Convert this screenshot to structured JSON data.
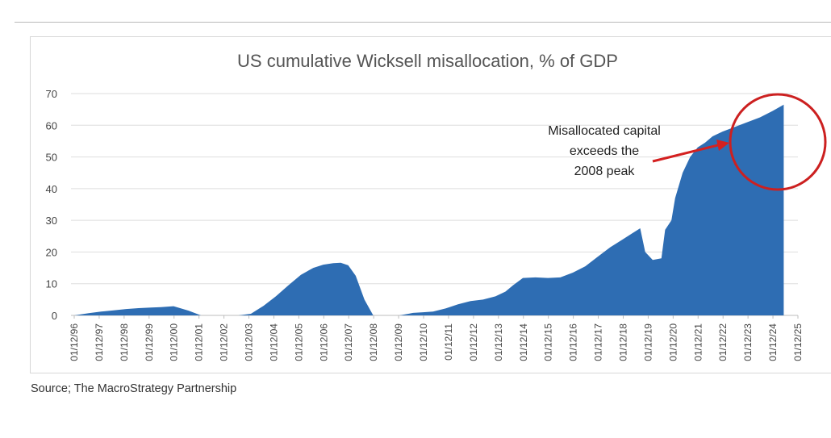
{
  "chart_data": {
    "type": "area",
    "title": "US cumulative Wicksell misallocation, % of GDP",
    "xlabel": "",
    "ylabel": "",
    "ylim": [
      0,
      70
    ],
    "yticks": [
      0,
      10,
      20,
      30,
      40,
      50,
      60,
      70
    ],
    "grid": true,
    "legend": "none",
    "x_tick_labels": [
      "01/12/96",
      "01/12/97",
      "01/12/98",
      "01/12/99",
      "01/12/00",
      "01/12/01",
      "01/12/02",
      "01/12/03",
      "01/12/04",
      "01/12/05",
      "01/12/06",
      "01/12/07",
      "01/12/08",
      "01/12/09",
      "01/12/10",
      "01/12/11",
      "01/12/12",
      "01/12/13",
      "01/12/14",
      "01/12/15",
      "01/12/16",
      "01/12/17",
      "01/12/18",
      "01/12/19",
      "01/12/20",
      "01/12/21",
      "01/12/22",
      "01/12/23",
      "01/12/24",
      "01/12/25"
    ],
    "x_years": [
      1996.92,
      1997.5,
      1998.0,
      1998.5,
      1999.0,
      1999.5,
      2000.0,
      2000.4,
      2000.9,
      2001.5,
      2002.0,
      2002.5,
      2002.9,
      2003.5,
      2004.0,
      2004.5,
      2005.0,
      2005.5,
      2006.0,
      2006.5,
      2006.9,
      2007.3,
      2007.6,
      2007.9,
      2008.2,
      2008.55,
      2008.9,
      2009.5,
      2009.95,
      2010.5,
      2010.9,
      2011.3,
      2011.8,
      2012.3,
      2012.8,
      2013.3,
      2013.8,
      2014.2,
      2014.5,
      2014.9,
      2015.4,
      2015.9,
      2016.4,
      2016.9,
      2017.4,
      2017.9,
      2018.4,
      2018.9,
      2019.3,
      2019.6,
      2019.8,
      2020.1,
      2020.45,
      2020.6,
      2020.85,
      2021.0,
      2021.3,
      2021.6,
      2021.9,
      2022.2,
      2022.5,
      2022.9,
      2023.4,
      2023.9,
      2024.4,
      2024.9,
      2025.35
    ],
    "values": [
      0,
      0.7,
      1.2,
      1.6,
      2.0,
      2.3,
      2.5,
      2.6,
      2.9,
      1.5,
      0,
      0,
      0,
      0,
      0.5,
      3.0,
      6.0,
      9.5,
      12.8,
      15.0,
      16.0,
      16.5,
      16.6,
      15.8,
      12.5,
      5.0,
      0,
      0,
      0,
      0.8,
      1.0,
      1.2,
      2.2,
      3.5,
      4.5,
      5.0,
      6.0,
      7.5,
      9.5,
      11.8,
      12.0,
      11.8,
      12.0,
      13.5,
      15.5,
      18.5,
      21.5,
      24.0,
      26.0,
      27.5,
      20.0,
      17.5,
      18.0,
      27.0,
      30.0,
      37.0,
      45.0,
      50.0,
      53.0,
      54.5,
      56.5,
      58.0,
      59.5,
      61.0,
      62.5,
      64.5,
      66.5
    ],
    "color": "#2e6db3",
    "annotation": {
      "lines": [
        "Misallocated capital",
        "exceeds the",
        "2008 peak"
      ],
      "arrow_color": "#d42020",
      "circle_color": "#cc2020"
    },
    "source": "Source; The MacroStrategy Partnership"
  }
}
